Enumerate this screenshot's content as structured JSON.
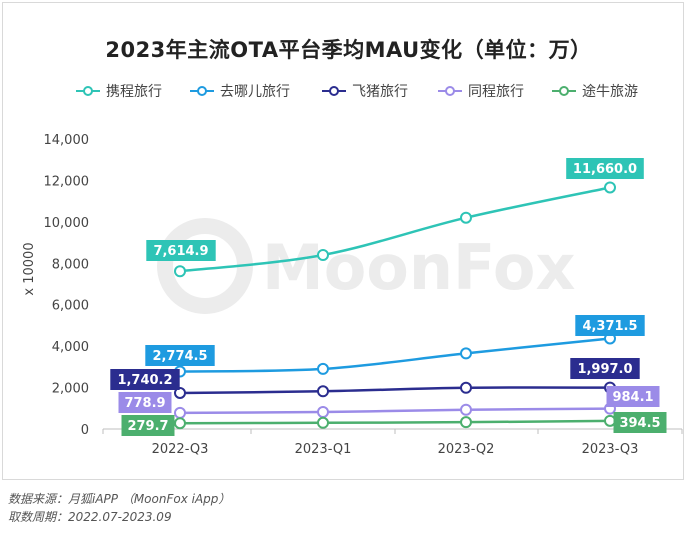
{
  "title": "2023年主流OTA平台季均MAU变化（单位：万）",
  "watermark": "MoonFox",
  "source_lines": [
    "数据来源：月狐iAPP （MoonFox iApp）",
    "取数周期：2022.07-2023.09"
  ],
  "chart_data": {
    "type": "line",
    "title": "2023年主流OTA平台季均MAU变化（单位：万）",
    "ylabel": "x 10000",
    "xlabel": "",
    "categories": [
      "2022-Q3",
      "2023-Q1",
      "2023-Q2",
      "2023-Q3"
    ],
    "ylim": [
      0,
      14000
    ],
    "yticks": [
      0,
      2000,
      4000,
      6000,
      8000,
      10000,
      12000,
      14000
    ],
    "ytick_labels": [
      "0",
      "2,000",
      "4,000",
      "6,000",
      "8,000",
      "10,000",
      "12,000",
      "14,000"
    ],
    "grid": false,
    "legend_position": "top",
    "series": [
      {
        "name": "携程旅行",
        "color": "#2ec4b6",
        "values": [
          7614.9,
          8400,
          10200,
          11660.0
        ],
        "labels": [
          "7,614.9",
          "",
          "",
          "11,660.0"
        ]
      },
      {
        "name": "去哪儿旅行",
        "color": "#1e9be0",
        "values": [
          2774.5,
          2900,
          3650,
          4371.5
        ],
        "labels": [
          "2,774.5",
          "",
          "",
          "4,371.5"
        ]
      },
      {
        "name": "飞猪旅行",
        "color": "#2b2d8f",
        "values": [
          1740.2,
          1820,
          1990,
          1997.0
        ],
        "labels": [
          "1,740.2",
          "",
          "",
          "1,997.0"
        ]
      },
      {
        "name": "同程旅行",
        "color": "#9b8be8",
        "values": [
          778.9,
          820,
          930,
          984.1
        ],
        "labels": [
          "778.9",
          "",
          "",
          "984.1"
        ]
      },
      {
        "name": "途牛旅游",
        "color": "#4caf6e",
        "values": [
          279.7,
          300,
          330,
          394.5
        ],
        "labels": [
          "279.7",
          "",
          "",
          "394.5"
        ]
      }
    ]
  }
}
